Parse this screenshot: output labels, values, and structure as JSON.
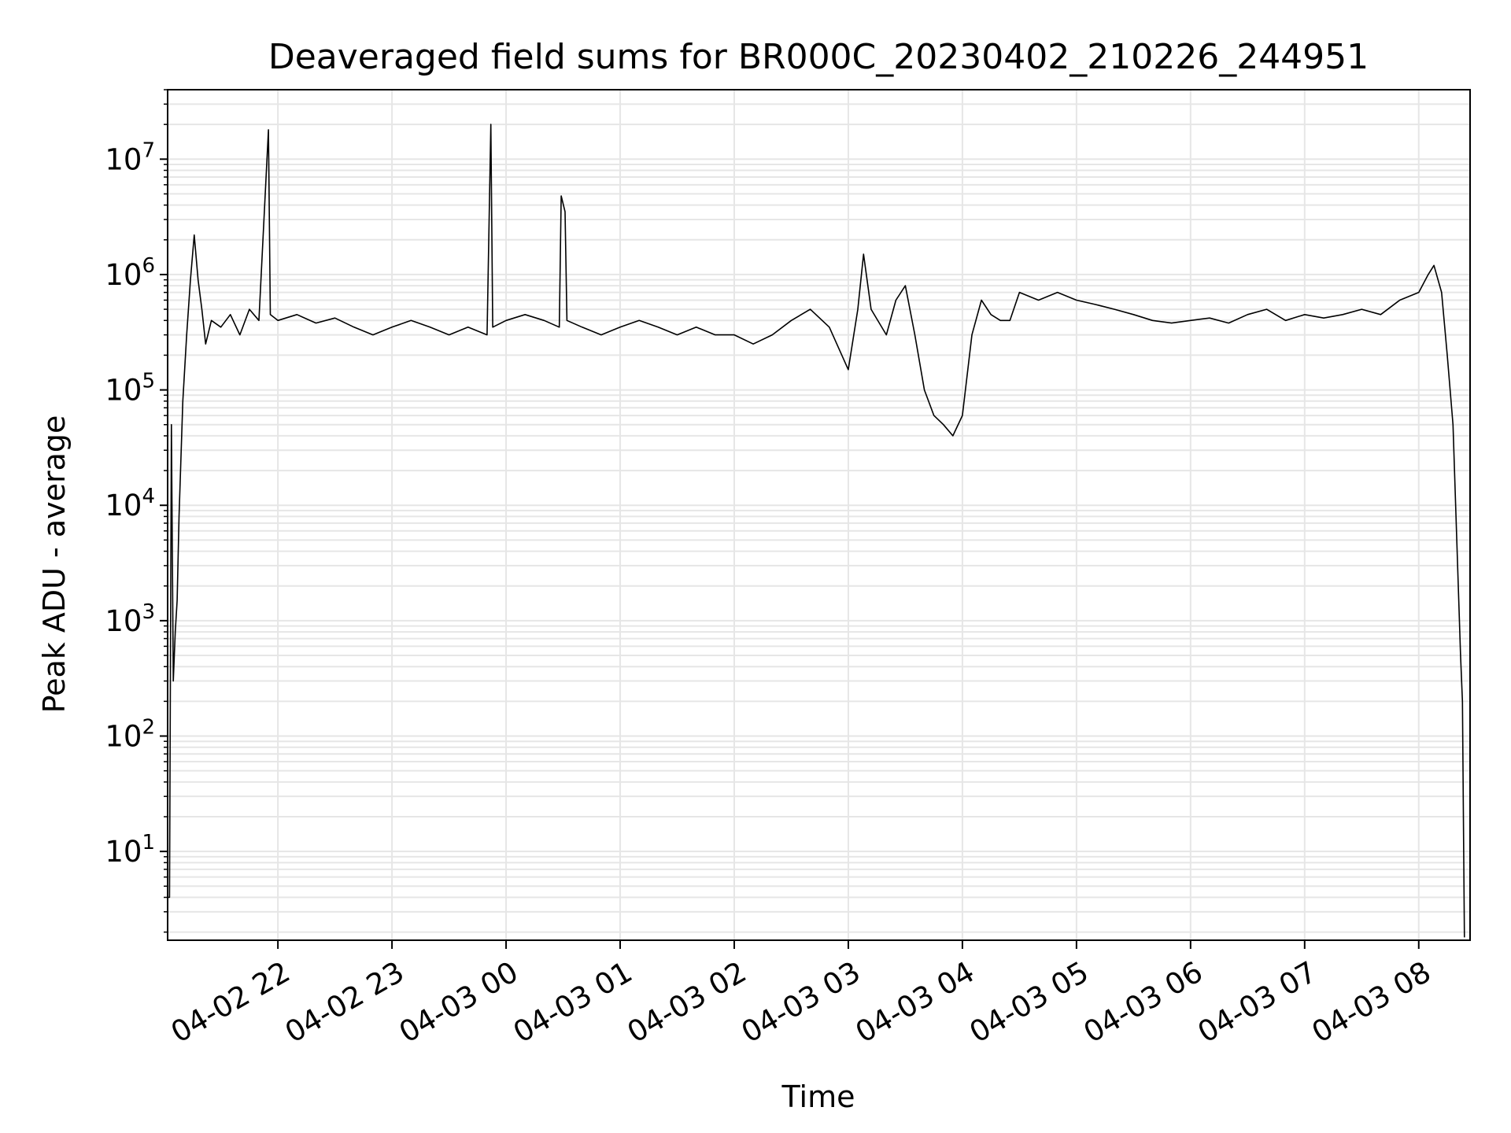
{
  "chart_data": {
    "type": "line",
    "title": "Deaveraged field sums for BR000C_20230402_210226_244951",
    "xlabel": "Time",
    "ylabel": "Peak ADU - average",
    "yscale": "log",
    "ylim": [
      1.7,
      40000000
    ],
    "xlim": [
      "2023-04-02 21:02",
      "2023-04-03 08:27"
    ],
    "grid": true,
    "grid_color": "#e6e6e6",
    "line_color": "#000000",
    "x_ticks": [
      {
        "t": "2023-04-02 22:00",
        "label": "04-02 22"
      },
      {
        "t": "2023-04-02 23:00",
        "label": "04-02 23"
      },
      {
        "t": "2023-04-03 00:00",
        "label": "04-03 00"
      },
      {
        "t": "2023-04-03 01:00",
        "label": "04-03 01"
      },
      {
        "t": "2023-04-03 02:00",
        "label": "04-03 02"
      },
      {
        "t": "2023-04-03 03:00",
        "label": "04-03 03"
      },
      {
        "t": "2023-04-03 04:00",
        "label": "04-03 04"
      },
      {
        "t": "2023-04-03 05:00",
        "label": "04-03 05"
      },
      {
        "t": "2023-04-03 06:00",
        "label": "04-03 06"
      },
      {
        "t": "2023-04-03 07:00",
        "label": "04-03 07"
      },
      {
        "t": "2023-04-03 08:00",
        "label": "04-03 08"
      }
    ],
    "y_ticks": [
      {
        "value": 10,
        "base": "10",
        "exp": "1"
      },
      {
        "value": 100,
        "base": "10",
        "exp": "2"
      },
      {
        "value": 1000,
        "base": "10",
        "exp": "3"
      },
      {
        "value": 10000,
        "base": "10",
        "exp": "4"
      },
      {
        "value": 100000,
        "base": "10",
        "exp": "5"
      },
      {
        "value": 1000000,
        "base": "10",
        "exp": "6"
      },
      {
        "value": 10000000,
        "base": "10",
        "exp": "7"
      }
    ],
    "series": [
      {
        "values": [
          [
            "2023-04-02 21:02",
            4
          ],
          [
            "2023-04-02 21:03",
            4
          ],
          [
            "2023-04-02 21:04",
            50000
          ],
          [
            "2023-04-02 21:05",
            300
          ],
          [
            "2023-04-02 21:06",
            800
          ],
          [
            "2023-04-02 21:07",
            1500
          ],
          [
            "2023-04-02 21:08",
            8000
          ],
          [
            "2023-04-02 21:10",
            80000
          ],
          [
            "2023-04-02 21:12",
            300000
          ],
          [
            "2023-04-02 21:14",
            900000
          ],
          [
            "2023-04-02 21:16",
            2200000
          ],
          [
            "2023-04-02 21:18",
            900000
          ],
          [
            "2023-04-02 21:20",
            500000
          ],
          [
            "2023-04-02 21:22",
            250000
          ],
          [
            "2023-04-02 21:25",
            400000
          ],
          [
            "2023-04-02 21:30",
            350000
          ],
          [
            "2023-04-02 21:35",
            450000
          ],
          [
            "2023-04-02 21:40",
            300000
          ],
          [
            "2023-04-02 21:45",
            500000
          ],
          [
            "2023-04-02 21:50",
            400000
          ],
          [
            "2023-04-02 21:55",
            18000000
          ],
          [
            "2023-04-02 21:56",
            450000
          ],
          [
            "2023-04-02 22:00",
            400000
          ],
          [
            "2023-04-02 22:10",
            450000
          ],
          [
            "2023-04-02 22:20",
            380000
          ],
          [
            "2023-04-02 22:30",
            420000
          ],
          [
            "2023-04-02 22:40",
            350000
          ],
          [
            "2023-04-02 22:50",
            300000
          ],
          [
            "2023-04-02 23:00",
            350000
          ],
          [
            "2023-04-02 23:10",
            400000
          ],
          [
            "2023-04-02 23:20",
            350000
          ],
          [
            "2023-04-02 23:30",
            300000
          ],
          [
            "2023-04-02 23:40",
            350000
          ],
          [
            "2023-04-02 23:50",
            300000
          ],
          [
            "2023-04-02 23:52",
            20000000
          ],
          [
            "2023-04-02 23:53",
            350000
          ],
          [
            "2023-04-03 00:00",
            400000
          ],
          [
            "2023-04-03 00:10",
            450000
          ],
          [
            "2023-04-03 00:20",
            400000
          ],
          [
            "2023-04-03 00:28",
            350000
          ],
          [
            "2023-04-03 00:29",
            4800000
          ],
          [
            "2023-04-03 00:31",
            3500000
          ],
          [
            "2023-04-03 00:32",
            400000
          ],
          [
            "2023-04-03 00:40",
            350000
          ],
          [
            "2023-04-03 00:50",
            300000
          ],
          [
            "2023-04-03 01:00",
            350000
          ],
          [
            "2023-04-03 01:10",
            400000
          ],
          [
            "2023-04-03 01:20",
            350000
          ],
          [
            "2023-04-03 01:30",
            300000
          ],
          [
            "2023-04-03 01:40",
            350000
          ],
          [
            "2023-04-03 01:50",
            300000
          ],
          [
            "2023-04-03 02:00",
            300000
          ],
          [
            "2023-04-03 02:10",
            250000
          ],
          [
            "2023-04-03 02:20",
            300000
          ],
          [
            "2023-04-03 02:30",
            400000
          ],
          [
            "2023-04-03 02:40",
            500000
          ],
          [
            "2023-04-03 02:50",
            350000
          ],
          [
            "2023-04-03 03:00",
            150000
          ],
          [
            "2023-04-03 03:05",
            500000
          ],
          [
            "2023-04-03 03:08",
            1500000
          ],
          [
            "2023-04-03 03:12",
            500000
          ],
          [
            "2023-04-03 03:20",
            300000
          ],
          [
            "2023-04-03 03:25",
            600000
          ],
          [
            "2023-04-03 03:30",
            800000
          ],
          [
            "2023-04-03 03:35",
            300000
          ],
          [
            "2023-04-03 03:40",
            100000
          ],
          [
            "2023-04-03 03:45",
            60000
          ],
          [
            "2023-04-03 03:50",
            50000
          ],
          [
            "2023-04-03 03:55",
            40000
          ],
          [
            "2023-04-03 04:00",
            60000
          ],
          [
            "2023-04-03 04:05",
            300000
          ],
          [
            "2023-04-03 04:10",
            600000
          ],
          [
            "2023-04-03 04:15",
            450000
          ],
          [
            "2023-04-03 04:20",
            400000
          ],
          [
            "2023-04-03 04:25",
            400000
          ],
          [
            "2023-04-03 04:30",
            700000
          ],
          [
            "2023-04-03 04:40",
            600000
          ],
          [
            "2023-04-03 04:50",
            700000
          ],
          [
            "2023-04-03 05:00",
            600000
          ],
          [
            "2023-04-03 05:10",
            550000
          ],
          [
            "2023-04-03 05:20",
            500000
          ],
          [
            "2023-04-03 05:30",
            450000
          ],
          [
            "2023-04-03 05:40",
            400000
          ],
          [
            "2023-04-03 05:50",
            380000
          ],
          [
            "2023-04-03 06:00",
            400000
          ],
          [
            "2023-04-03 06:10",
            420000
          ],
          [
            "2023-04-03 06:20",
            380000
          ],
          [
            "2023-04-03 06:30",
            450000
          ],
          [
            "2023-04-03 06:40",
            500000
          ],
          [
            "2023-04-03 06:50",
            400000
          ],
          [
            "2023-04-03 07:00",
            450000
          ],
          [
            "2023-04-03 07:10",
            420000
          ],
          [
            "2023-04-03 07:20",
            450000
          ],
          [
            "2023-04-03 07:30",
            500000
          ],
          [
            "2023-04-03 07:40",
            450000
          ],
          [
            "2023-04-03 07:50",
            600000
          ],
          [
            "2023-04-03 08:00",
            700000
          ],
          [
            "2023-04-03 08:05",
            1000000
          ],
          [
            "2023-04-03 08:08",
            1200000
          ],
          [
            "2023-04-03 08:12",
            700000
          ],
          [
            "2023-04-03 08:15",
            200000
          ],
          [
            "2023-04-03 08:18",
            50000
          ],
          [
            "2023-04-03 08:20",
            5000
          ],
          [
            "2023-04-03 08:22",
            500
          ],
          [
            "2023-04-03 08:23",
            200
          ],
          [
            "2023-04-03 08:24",
            1.8
          ]
        ]
      }
    ]
  }
}
